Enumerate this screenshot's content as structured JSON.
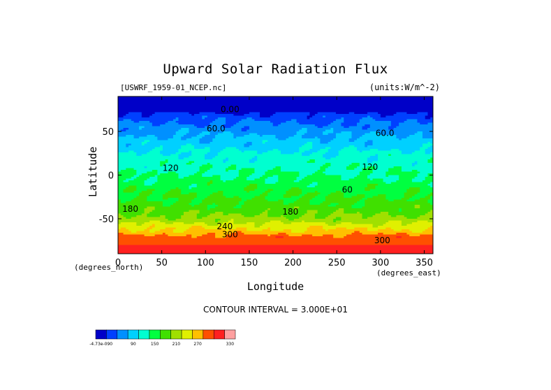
{
  "chart_data": {
    "type": "heatmap",
    "title": "Upward Solar Radiation Flux",
    "dataset_label": "[USWRF_1959-01_NCEP.nc]",
    "units_label": "(units:W/m^-2)",
    "xlabel": "Longitude",
    "ylabel": "Latitude",
    "x_unit_label": "(degrees_east)",
    "y_unit_label": "(degrees_north)",
    "xlim": [
      0,
      360
    ],
    "ylim": [
      -90,
      90
    ],
    "x_ticks": [
      0,
      50,
      100,
      150,
      200,
      250,
      300,
      350
    ],
    "y_ticks": [
      50,
      0,
      -50
    ],
    "contour_interval_label": "CONTOUR INTERVAL = 3.000E+01",
    "contour_interval": 30,
    "latitude_profile": [
      {
        "lat": 90,
        "value": 0
      },
      {
        "lat": 75,
        "value": 0
      },
      {
        "lat": 70,
        "value": 25
      },
      {
        "lat": 62,
        "value": 45
      },
      {
        "lat": 55,
        "value": 60
      },
      {
        "lat": 45,
        "value": 80
      },
      {
        "lat": 35,
        "value": 95
      },
      {
        "lat": 25,
        "value": 115
      },
      {
        "lat": 15,
        "value": 125
      },
      {
        "lat": 5,
        "value": 135
      },
      {
        "lat": -5,
        "value": 145
      },
      {
        "lat": -15,
        "value": 160
      },
      {
        "lat": -25,
        "value": 170
      },
      {
        "lat": -35,
        "value": 180
      },
      {
        "lat": -45,
        "value": 195
      },
      {
        "lat": -52,
        "value": 215
      },
      {
        "lat": -58,
        "value": 245
      },
      {
        "lat": -65,
        "value": 270
      },
      {
        "lat": -70,
        "value": 300
      },
      {
        "lat": -78,
        "value": 310
      },
      {
        "lat": -84,
        "value": 330
      },
      {
        "lat": -90,
        "value": 335
      }
    ],
    "contour_labels": [
      {
        "text": "0.00",
        "lon": 128,
        "lat": 72
      },
      {
        "text": "60.0",
        "lon": 112,
        "lat": 50
      },
      {
        "text": "60.0",
        "lon": 305,
        "lat": 45
      },
      {
        "text": "120",
        "lon": 60,
        "lat": 5
      },
      {
        "text": "120",
        "lon": 288,
        "lat": 6
      },
      {
        "text": "60",
        "lon": 262,
        "lat": -20
      },
      {
        "text": "180",
        "lon": 14,
        "lat": -42
      },
      {
        "text": "180",
        "lon": 197,
        "lat": -45
      },
      {
        "text": "240",
        "lon": 122,
        "lat": -62
      },
      {
        "text": "300",
        "lon": 128,
        "lat": -71
      },
      {
        "text": "300",
        "lon": 302,
        "lat": -78
      }
    ],
    "colorbar": {
      "colors": [
        "#0000c8",
        "#0040ff",
        "#0090ff",
        "#00d0ff",
        "#00ffd0",
        "#00ff40",
        "#40e000",
        "#a0e000",
        "#e0f000",
        "#ffc000",
        "#ff5000",
        "#ff2020",
        "#ffa0a0"
      ],
      "labels": [
        {
          "text": "-4.73e-090",
          "index": 0
        },
        {
          "text": "90",
          "index": 3
        },
        {
          "text": "150",
          "index": 5
        },
        {
          "text": "210",
          "index": 7
        },
        {
          "text": "270",
          "index": 9
        },
        {
          "text": "330",
          "index": 12
        }
      ]
    }
  }
}
